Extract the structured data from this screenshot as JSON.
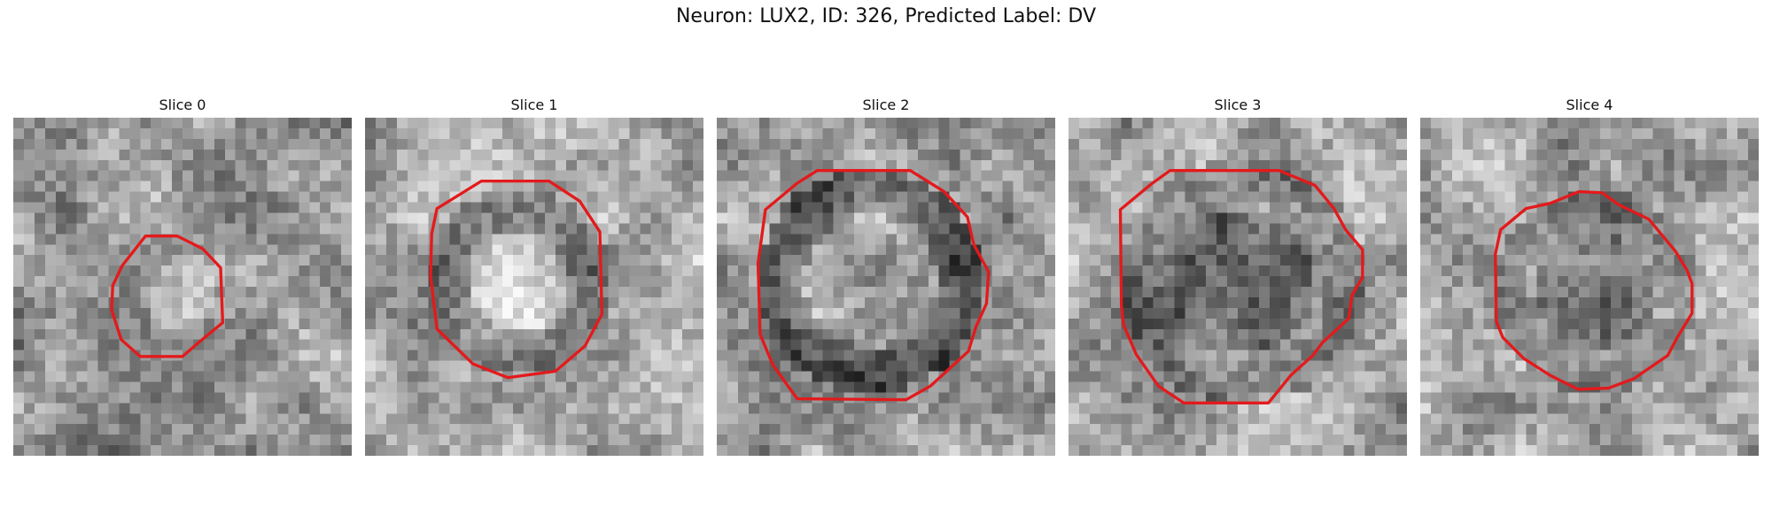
{
  "figure": {
    "title": "Neuron: LUX2, ID: 326, Predicted Label: DV",
    "contour_color": "#e31a1c",
    "colormap": "gray"
  },
  "slices": [
    {
      "label": "Slice 0"
    },
    {
      "label": "Slice 1"
    },
    {
      "label": "Slice 2"
    },
    {
      "label": "Slice 3"
    },
    {
      "label": "Slice 4"
    }
  ]
}
